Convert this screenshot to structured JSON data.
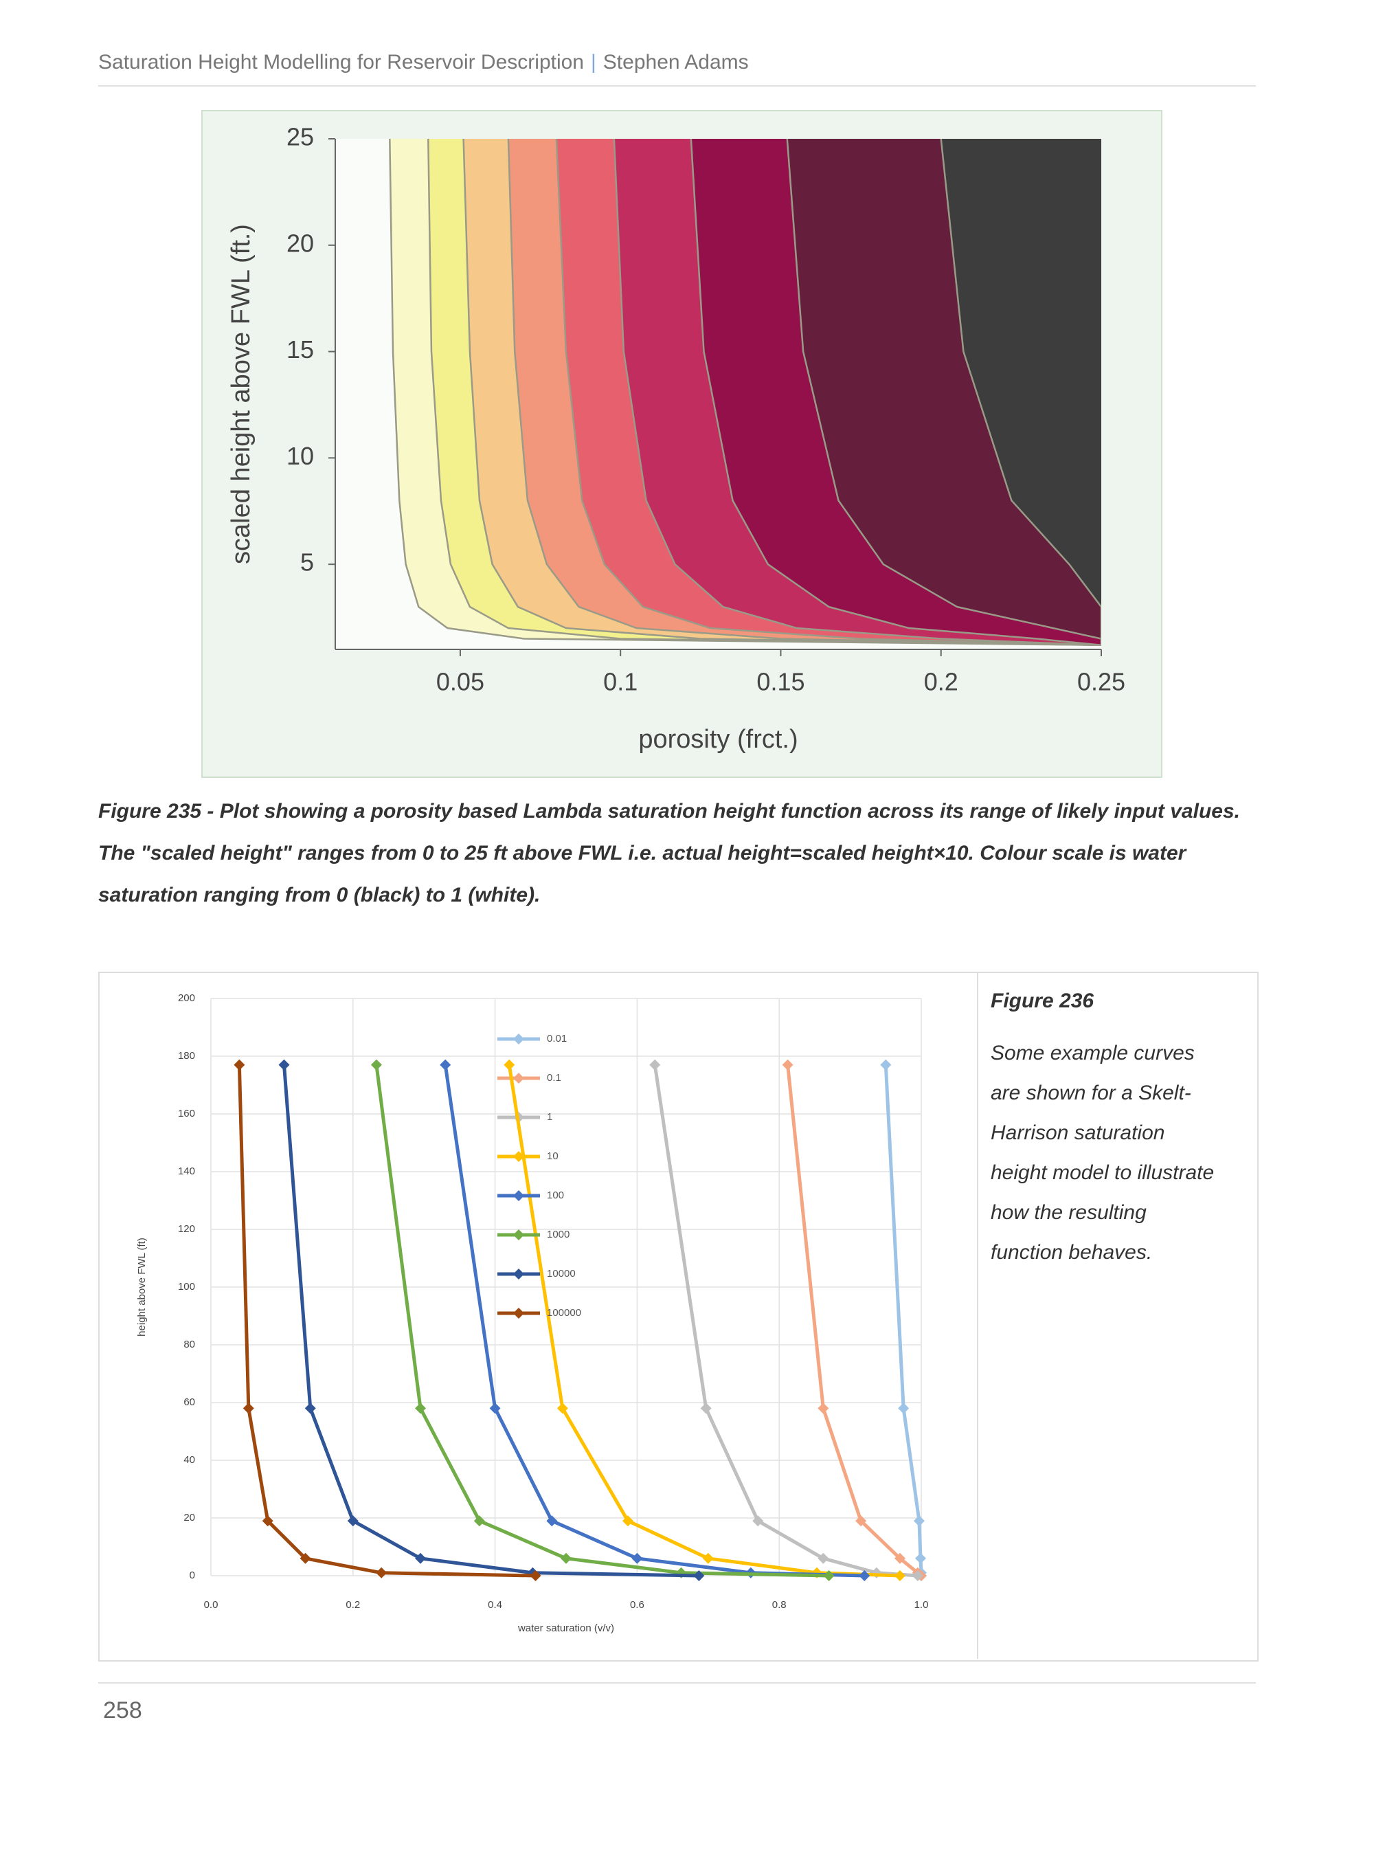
{
  "header": {
    "title": "Saturation Height Modelling for Reservoir Description",
    "author": "Stephen Adams"
  },
  "chart_data": [
    {
      "type": "contour",
      "x_label": "porosity (frct.)",
      "y_label": "scaled height above FWL (ft.)",
      "xlim": [
        0.011,
        0.25
      ],
      "ylim": [
        1,
        25
      ],
      "xticks": [
        0.05,
        0.1,
        0.15,
        0.2,
        0.25
      ],
      "yticks": [
        5,
        10,
        15,
        20,
        25
      ],
      "y": [
        25,
        15,
        8,
        5,
        3,
        2,
        1.5,
        1.2
      ],
      "series": [
        {
          "color": "#f8f8c8",
          "x": [
            0.028,
            0.029,
            0.031,
            0.033,
            0.037,
            0.046,
            0.07,
            0.25
          ]
        },
        {
          "color": "#f3f08e",
          "x": [
            0.04,
            0.041,
            0.044,
            0.047,
            0.053,
            0.065,
            0.1,
            0.25
          ]
        },
        {
          "color": "#f6c98a",
          "x": [
            0.051,
            0.053,
            0.056,
            0.06,
            0.068,
            0.083,
            0.125,
            0.25
          ]
        },
        {
          "color": "#f2977b",
          "x": [
            0.065,
            0.067,
            0.071,
            0.077,
            0.087,
            0.105,
            0.15,
            0.25
          ]
        },
        {
          "color": "#e6606d",
          "x": [
            0.08,
            0.083,
            0.088,
            0.095,
            0.107,
            0.128,
            0.175,
            0.25
          ]
        },
        {
          "color": "#c02d5e",
          "x": [
            0.098,
            0.101,
            0.108,
            0.117,
            0.132,
            0.155,
            0.2,
            0.25
          ]
        },
        {
          "color": "#93104a",
          "x": [
            0.122,
            0.126,
            0.135,
            0.146,
            0.165,
            0.19,
            0.23,
            0.25
          ]
        },
        {
          "color": "#661e3d",
          "x": [
            0.152,
            0.157,
            0.168,
            0.182,
            0.205,
            0.235,
            0.25,
            0.25
          ]
        },
        {
          "color": "#3d3d3d",
          "x": [
            0.2,
            0.207,
            0.222,
            0.24,
            0.25,
            0.25,
            0.25,
            0.25
          ]
        }
      ]
    },
    {
      "type": "line",
      "x_label": "water saturation (v/v)",
      "y_label": "height above FWL (ft)",
      "xlim": [
        0,
        1
      ],
      "ylim": [
        0,
        200
      ],
      "grid": true,
      "legend": "upper center",
      "xticks": [
        {
          "value": 0,
          "label": "0.0"
        },
        0.2,
        0.4,
        0.6,
        0.8,
        {
          "value": 1,
          "label": "1.0"
        }
      ],
      "yticks": [
        0,
        20,
        40,
        60,
        80,
        100,
        120,
        140,
        160,
        180,
        200
      ],
      "series": [
        {
          "name": "0.01",
          "color": "#9dc3e6",
          "x": [
            0.95,
            0.975,
            0.997,
            0.999,
            1,
            1
          ],
          "values": [
            177,
            58,
            19,
            6,
            1,
            0
          ]
        },
        {
          "name": "0.1",
          "color": "#f4a582",
          "x": [
            0.812,
            0.862,
            0.915,
            0.97,
            0.995,
            1
          ],
          "values": [
            177,
            58,
            19,
            6,
            1,
            0
          ]
        },
        {
          "name": "1",
          "color": "#bfbfbf",
          "x": [
            0.625,
            0.697,
            0.77,
            0.862,
            0.937,
            0.995
          ],
          "values": [
            177,
            58,
            19,
            6,
            1,
            0
          ]
        },
        {
          "name": "10",
          "color": "#ffc000",
          "x": [
            0.42,
            0.495,
            0.587,
            0.7,
            0.853,
            0.97
          ],
          "values": [
            177,
            58,
            19,
            6,
            1,
            0
          ]
        },
        {
          "name": "100",
          "color": "#4472c4",
          "x": [
            0.33,
            0.4,
            0.48,
            0.6,
            0.76,
            0.92
          ],
          "values": [
            177,
            58,
            19,
            6,
            1,
            0
          ]
        },
        {
          "name": "1000",
          "color": "#70ad47",
          "x": [
            0.233,
            0.295,
            0.378,
            0.5,
            0.662,
            0.87
          ],
          "values": [
            177,
            58,
            19,
            6,
            1,
            0
          ]
        },
        {
          "name": "10000",
          "color": "#2f5597",
          "x": [
            0.103,
            0.14,
            0.2,
            0.295,
            0.453,
            0.687
          ],
          "values": [
            177,
            58,
            19,
            6,
            1,
            0
          ]
        },
        {
          "name": "100000",
          "color": "#9e480e",
          "x": [
            0.04,
            0.053,
            0.08,
            0.133,
            0.24,
            0.457
          ],
          "values": [
            177,
            58,
            19,
            6,
            1,
            0
          ]
        }
      ]
    }
  ],
  "captions": [
    "Figure 235 - Plot showing a porosity based Lambda saturation height function across its range of likely input values. The \"scaled height\" ranges from 0 to 25 ft above FWL i.e. actual height=scaled height×10. Colour scale is water saturation ranging from 0 (black) to 1 (white)."
  ],
  "side_text": {
    "label": "Figure 236",
    "body": "Some example curves are shown for a Skelt-Harrison saturation height model to illustrate how the resulting function behaves."
  },
  "page_number": "258"
}
